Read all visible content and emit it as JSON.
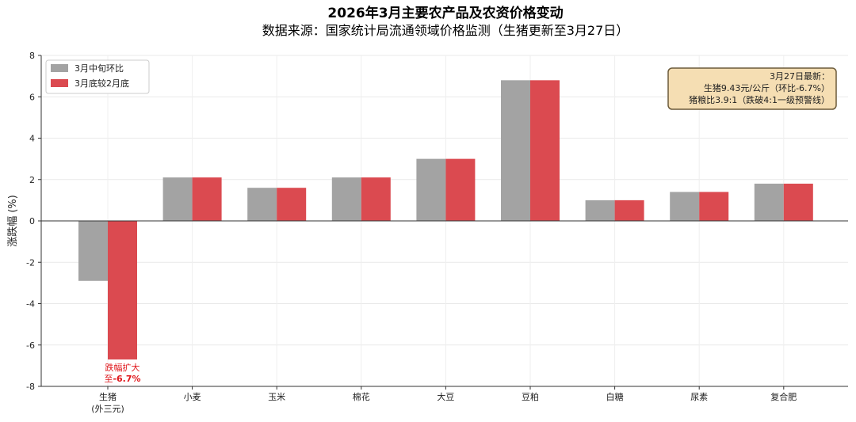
{
  "chart_data": {
    "type": "bar",
    "title": "2026年3月主要农产品及农资价格变动",
    "subtitle": "数据来源：国家统计局流通领域价格监测（生猪更新至3月27日）",
    "ylabel": "涨跌幅 (%)",
    "xlabel": "",
    "ylim": [
      -8,
      8
    ],
    "yticks": [
      -8,
      -6,
      -4,
      -2,
      0,
      2,
      4,
      6,
      8
    ],
    "grid": true,
    "legend_position": "top-left",
    "categories": [
      "生猪\n(外三元)",
      "小麦",
      "玉米",
      "棉花",
      "大豆",
      "豆粕",
      "白糖",
      "尿素",
      "复合肥"
    ],
    "series": [
      {
        "name": "3月中旬环比",
        "color": "#a3a3a3",
        "values": [
          -2.9,
          2.1,
          1.6,
          2.1,
          3.0,
          6.8,
          1.0,
          1.4,
          1.8
        ]
      },
      {
        "name": "3月底较2月底",
        "color": "#db4a50",
        "values": [
          -6.7,
          2.1,
          1.6,
          2.1,
          3.0,
          6.8,
          1.0,
          1.4,
          1.8
        ]
      }
    ],
    "annotation": {
      "line1": "跌幅扩大",
      "line2_prefix": "至",
      "line2_value": "-6.7%"
    },
    "note_box": {
      "lines": [
        "3月27日最新：",
        "生猪9.43元/公斤（环比-6.7%）",
        "猪粮比3.9:1（跌破4:1一级预警线）"
      ],
      "background": "#f5deb3",
      "border": "#6b5a3a"
    }
  }
}
